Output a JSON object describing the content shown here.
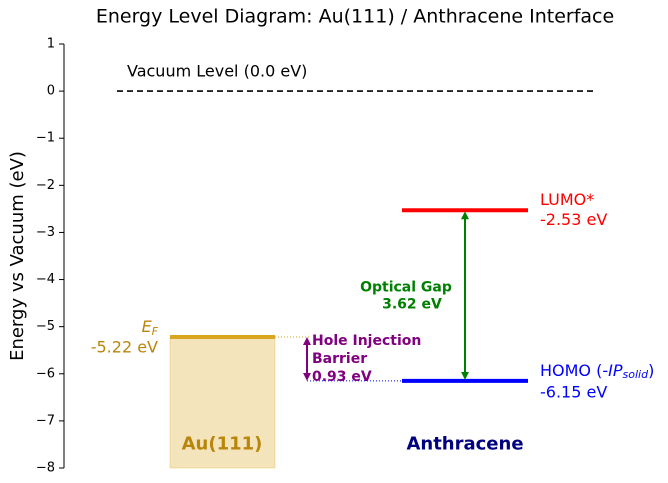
{
  "chart_data": {
    "type": "energy-levels",
    "title": "Energy Level Diagram: Au(111) / Anthracene Interface",
    "y_label": "Energy vs Vacuum (eV)",
    "ylim": [
      -8,
      1
    ],
    "yticks": [
      1,
      0,
      {
        "value": -1,
        "label": "−1"
      },
      {
        "value": -2,
        "label": "−2"
      },
      {
        "value": -3,
        "label": "−3"
      },
      {
        "value": -4,
        "label": "−4"
      },
      {
        "value": -5,
        "label": "−5"
      },
      {
        "value": -6,
        "label": "−6"
      },
      {
        "value": -7,
        "label": "−7"
      },
      {
        "value": -8,
        "label": "−8"
      }
    ],
    "vacuum": {
      "label": "Vacuum Level (0.0 eV)",
      "value": 0,
      "color": "#000000"
    },
    "substrate": {
      "name": "Au(111)",
      "color": "#DAA520",
      "label_color": "#B8860B",
      "fermi": {
        "symbol": "E",
        "subscript": "F",
        "value": -5.22,
        "value_label": "-5.22 eV"
      }
    },
    "molecule": {
      "name": "Anthracene",
      "label_color": "#000080",
      "lumo": {
        "label": "LUMO*",
        "value": -2.53,
        "value_label": "-2.53 eV",
        "color": "#FF0000"
      },
      "homo": {
        "label_parts": [
          "HOMO (-",
          "IP",
          "solid",
          ")"
        ],
        "value": -6.15,
        "value_label": "-6.15 eV",
        "color": "#0000FF"
      }
    },
    "gaps": [
      {
        "label_lines": [
          "Optical Gap"
        ],
        "value": 3.62,
        "value_label": "3.62 eV",
        "color": "#008000"
      },
      {
        "label_lines": [
          "Hole Injection",
          "Barrier"
        ],
        "value": 0.93,
        "value_label": "0.93 eV",
        "color": "#800080"
      }
    ]
  }
}
